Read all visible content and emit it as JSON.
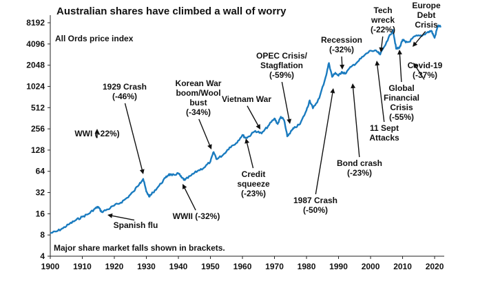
{
  "chart_data": {
    "type": "line",
    "title": "Australian shares have climbed a wall of worry",
    "subtitle": "All Ords price index",
    "footnote": "Major share market falls shown in brackets.",
    "y_scale": "log2",
    "ylim": [
      4,
      10500
    ],
    "xlim": [
      1900,
      2023
    ],
    "x_ticks": [
      "1900",
      "1910",
      "1920",
      "1930",
      "1940",
      "1950",
      "1960",
      "1970",
      "1980",
      "1990",
      "2000",
      "2010",
      "2020"
    ],
    "y_ticks": [
      "4",
      "8",
      "16",
      "32",
      "64",
      "128",
      "256",
      "512",
      "1024",
      "2048",
      "4096",
      "8192"
    ],
    "line_color": "#1a7bbf",
    "grid": false,
    "series": [
      {
        "x": [
          1900,
          1902,
          1904,
          1906,
          1908,
          1910,
          1912,
          1914,
          1915,
          1916,
          1918,
          1920,
          1922,
          1924,
          1926,
          1928,
          1929,
          1930,
          1931,
          1932,
          1934,
          1936,
          1937,
          1938,
          1940,
          1941,
          1942,
          1944,
          1946,
          1948,
          1950,
          1951,
          1952,
          1954,
          1956,
          1958,
          1960,
          1961,
          1962,
          1964,
          1966,
          1968,
          1970,
          1971,
          1972,
          1973,
          1974,
          1975,
          1976,
          1978,
          1980,
          1981,
          1982,
          1984,
          1986,
          1987,
          1988,
          1989,
          1990,
          1991,
          1992,
          1994,
          1996,
          1998,
          2000,
          2002,
          2003,
          2005,
          2007,
          2008,
          2009,
          2010,
          2011,
          2012,
          2014,
          2016,
          2018,
          2019,
          2020,
          2021,
          2022
        ],
        "y": [
          8.5,
          9,
          10,
          11.5,
          13,
          14.5,
          16,
          19,
          20,
          17,
          18.5,
          21,
          23,
          27,
          33,
          44,
          50,
          33,
          28,
          32,
          40,
          52,
          58,
          56,
          60,
          52,
          48,
          56,
          65,
          72,
          88,
          120,
          95,
          110,
          140,
          160,
          210,
          190,
          200,
          240,
          220,
          280,
          360,
          300,
          380,
          340,
          200,
          230,
          260,
          300,
          470,
          650,
          500,
          700,
          1400,
          2200,
          1400,
          1600,
          1450,
          1650,
          1550,
          1950,
          2300,
          2800,
          3300,
          3200,
          2900,
          4400,
          6500,
          3500,
          3600,
          4700,
          4300,
          4400,
          5300,
          5300,
          6100,
          6300,
          5000,
          7400,
          7300
        ]
      }
    ],
    "annotations": [
      {
        "lines": [
          "WWI (-22%)"
        ],
        "x": 1915,
        "y": 20
      },
      {
        "lines": [
          "Spanish flu"
        ],
        "x": 1918,
        "y": 17
      },
      {
        "lines": [
          "1929 Crash",
          "(-46%)"
        ],
        "x": 1929,
        "y": 50
      },
      {
        "lines": [
          "WWII (-32%)"
        ],
        "x": 1941,
        "y": 52
      },
      {
        "lines": [
          "Korean War",
          "boom/Wool",
          "bust",
          "(-34%)"
        ],
        "x": 1951,
        "y": 120
      },
      {
        "lines": [
          "Credit",
          "squeeze",
          "(-23%)"
        ],
        "x": 1961,
        "y": 190
      },
      {
        "lines": [
          "Vietnam War"
        ],
        "x": 1966,
        "y": 240
      },
      {
        "lines": [
          "OPEC Crisis/",
          "Stagflation",
          "(-59%)"
        ],
        "x": 1973,
        "y": 380
      },
      {
        "lines": [
          "1987 Crash",
          "(-50%)"
        ],
        "x": 1987,
        "y": 1500
      },
      {
        "lines": [
          "Recession",
          "(-32%)"
        ],
        "x": 1990,
        "y": 1900
      },
      {
        "lines": [
          "Bond crash",
          "(-23%)"
        ],
        "x": 1994,
        "y": 1700
      },
      {
        "lines": [
          "Tech",
          "wreck",
          "(-22%)"
        ],
        "x": 2001,
        "y": 3200
      },
      {
        "lines": [
          "11 Sept",
          "Attacks"
        ],
        "x": 2001,
        "y": 3000
      },
      {
        "lines": [
          "Europe",
          "Debt",
          "Crisis"
        ],
        "x": 2011,
        "y": 4700
      },
      {
        "lines": [
          "Global",
          "Financial",
          "Crisis",
          "(-55%)"
        ],
        "x": 2008,
        "y": 4200
      },
      {
        "lines": [
          "Covid-19",
          "(-37%)"
        ],
        "x": 2020,
        "y": 5200
      }
    ]
  }
}
